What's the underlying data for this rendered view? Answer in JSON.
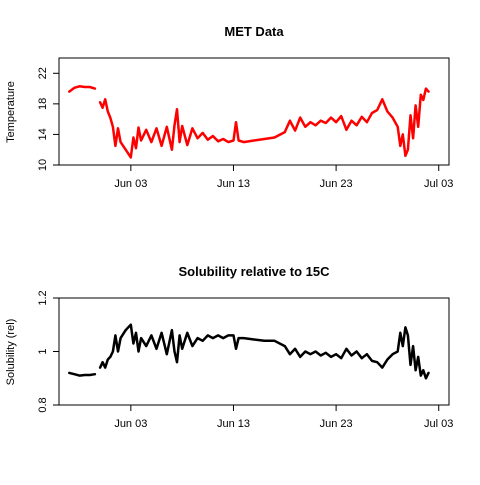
{
  "chart_data": [
    {
      "type": "line",
      "title": "MET Data",
      "xlabel": "",
      "ylabel": "Temperature",
      "ylim": [
        10,
        24
      ],
      "yticks": [
        10,
        14,
        18,
        22
      ],
      "xlim": [
        "2023-05-27",
        "2023-07-04"
      ],
      "xticks": [
        {
          "date": "2023-06-03",
          "label": "Jun 03"
        },
        {
          "date": "2023-06-13",
          "label": "Jun 13"
        },
        {
          "date": "2023-06-23",
          "label": "Jun 23"
        },
        {
          "date": "2023-07-03",
          "label": "Jul 03"
        }
      ],
      "grid": false,
      "color": "#ff0000",
      "series": [
        {
          "segments": [
            {
              "x": [
                "2023-05-28",
                "2023-05-28T12:00",
                "2023-05-29",
                "2023-05-29T12:00",
                "2023-05-30",
                "2023-05-30T12:00"
              ],
              "y": [
                19.6,
                20.1,
                20.3,
                20.2,
                20.2,
                20.0
              ]
            },
            {
              "x": [
                "2023-05-31",
                "2023-05-31T06:00",
                "2023-05-31T12:00",
                "2023-05-31T18:00",
                "2023-06-01",
                "2023-06-01T06:00",
                "2023-06-01T12:00",
                "2023-06-01T18:00",
                "2023-06-02",
                "2023-06-02T12:00",
                "2023-06-03",
                "2023-06-03T06:00",
                "2023-06-03T12:00",
                "2023-06-03T18:00",
                "2023-06-04",
                "2023-06-04T12:00",
                "2023-06-05",
                "2023-06-05T12:00",
                "2023-06-06",
                "2023-06-06T12:00",
                "2023-06-07",
                "2023-06-07T06:00",
                "2023-06-07T12:00",
                "2023-06-07T18:00",
                "2023-06-08",
                "2023-06-08T12:00",
                "2023-06-09",
                "2023-06-09T12:00",
                "2023-06-10",
                "2023-06-10T12:00",
                "2023-06-11",
                "2023-06-11T12:00",
                "2023-06-12",
                "2023-06-12T12:00",
                "2023-06-13",
                "2023-06-13T06:00",
                "2023-06-13T12:00",
                "2023-06-14",
                "2023-06-15",
                "2023-06-16",
                "2023-06-17",
                "2023-06-18",
                "2023-06-18T12:00",
                "2023-06-19",
                "2023-06-19T12:00",
                "2023-06-20",
                "2023-06-20T12:00",
                "2023-06-21",
                "2023-06-21T12:00",
                "2023-06-22",
                "2023-06-22T12:00",
                "2023-06-23",
                "2023-06-23T12:00",
                "2023-06-24",
                "2023-06-24T12:00",
                "2023-06-25",
                "2023-06-25T12:00",
                "2023-06-26",
                "2023-06-26T12:00",
                "2023-06-27",
                "2023-06-27T12:00",
                "2023-06-28",
                "2023-06-28T12:00",
                "2023-06-29",
                "2023-06-29T06:00",
                "2023-06-29T12:00",
                "2023-06-29T18:00",
                "2023-06-30",
                "2023-06-30T06:00",
                "2023-06-30T12:00",
                "2023-06-30T18:00",
                "2023-07-01",
                "2023-07-01T06:00",
                "2023-07-01T12:00",
                "2023-07-01T18:00",
                "2023-07-02"
              ],
              "y": [
                18.2,
                17.5,
                18.6,
                17.0,
                16.2,
                15.0,
                12.5,
                14.8,
                13.0,
                12.0,
                11.0,
                13.6,
                12.2,
                14.9,
                13.2,
                14.6,
                13.0,
                14.8,
                12.5,
                15.0,
                12.0,
                15.2,
                17.3,
                13.0,
                15.1,
                12.6,
                14.8,
                13.5,
                14.2,
                13.3,
                13.8,
                13.1,
                13.4,
                13.0,
                13.2,
                15.6,
                13.2,
                13.0,
                13.2,
                13.4,
                13.6,
                14.3,
                15.8,
                14.5,
                16.2,
                15.0,
                15.6,
                15.2,
                15.8,
                15.5,
                16.2,
                15.6,
                16.4,
                14.6,
                15.8,
                15.2,
                16.3,
                15.6,
                16.8,
                17.2,
                18.6,
                17.0,
                16.2,
                15.0,
                12.5,
                14.0,
                11.2,
                12.0,
                16.5,
                13.5,
                17.8,
                15.0,
                19.2,
                18.5,
                20.0,
                19.6
              ]
            }
          ]
        }
      ]
    },
    {
      "type": "line",
      "title": "Solubility relative to 15C",
      "xlabel": "",
      "ylabel": "Solubility (rel)",
      "ylim": [
        0.8,
        1.2
      ],
      "yticks": [
        0.8,
        1.0,
        1.2
      ],
      "xlim": [
        "2023-05-27",
        "2023-07-04"
      ],
      "xticks": [
        {
          "date": "2023-06-03",
          "label": "Jun 03"
        },
        {
          "date": "2023-06-13",
          "label": "Jun 13"
        },
        {
          "date": "2023-06-23",
          "label": "Jun 23"
        },
        {
          "date": "2023-07-03",
          "label": "Jul 03"
        }
      ],
      "grid": false,
      "color": "#000000",
      "series": [
        {
          "segments": [
            {
              "x": [
                "2023-05-28",
                "2023-05-28T12:00",
                "2023-05-29",
                "2023-05-29T12:00",
                "2023-05-30",
                "2023-05-30T12:00"
              ],
              "y": [
                0.92,
                0.915,
                0.91,
                0.912,
                0.912,
                0.915
              ]
            },
            {
              "x": [
                "2023-05-31",
                "2023-05-31T06:00",
                "2023-05-31T12:00",
                "2023-05-31T18:00",
                "2023-06-01",
                "2023-06-01T06:00",
                "2023-06-01T12:00",
                "2023-06-01T18:00",
                "2023-06-02",
                "2023-06-02T12:00",
                "2023-06-03",
                "2023-06-03T06:00",
                "2023-06-03T12:00",
                "2023-06-03T18:00",
                "2023-06-04",
                "2023-06-04T12:00",
                "2023-06-05",
                "2023-06-05T12:00",
                "2023-06-06",
                "2023-06-06T12:00",
                "2023-06-07",
                "2023-06-07T06:00",
                "2023-06-07T12:00",
                "2023-06-07T18:00",
                "2023-06-08",
                "2023-06-08T12:00",
                "2023-06-09",
                "2023-06-09T12:00",
                "2023-06-10",
                "2023-06-10T12:00",
                "2023-06-11",
                "2023-06-11T12:00",
                "2023-06-12",
                "2023-06-12T12:00",
                "2023-06-13",
                "2023-06-13T06:00",
                "2023-06-13T12:00",
                "2023-06-14",
                "2023-06-15",
                "2023-06-16",
                "2023-06-17",
                "2023-06-18",
                "2023-06-18T12:00",
                "2023-06-19",
                "2023-06-19T12:00",
                "2023-06-20",
                "2023-06-20T12:00",
                "2023-06-21",
                "2023-06-21T12:00",
                "2023-06-22",
                "2023-06-22T12:00",
                "2023-06-23",
                "2023-06-23T12:00",
                "2023-06-24",
                "2023-06-24T12:00",
                "2023-06-25",
                "2023-06-25T12:00",
                "2023-06-26",
                "2023-06-26T12:00",
                "2023-06-27",
                "2023-06-27T12:00",
                "2023-06-28",
                "2023-06-28T12:00",
                "2023-06-29",
                "2023-06-29T06:00",
                "2023-06-29T12:00",
                "2023-06-29T18:00",
                "2023-06-30",
                "2023-06-30T06:00",
                "2023-06-30T12:00",
                "2023-06-30T18:00",
                "2023-07-01",
                "2023-07-01T06:00",
                "2023-07-01T12:00",
                "2023-07-01T18:00",
                "2023-07-02"
              ],
              "y": [
                0.94,
                0.96,
                0.94,
                0.97,
                0.98,
                1.0,
                1.06,
                1.0,
                1.05,
                1.08,
                1.1,
                1.03,
                1.07,
                1.0,
                1.05,
                1.02,
                1.06,
                1.01,
                1.07,
                0.99,
                1.08,
                1.0,
                0.96,
                1.06,
                1.01,
                1.07,
                1.02,
                1.05,
                1.04,
                1.06,
                1.05,
                1.06,
                1.05,
                1.06,
                1.06,
                1.01,
                1.05,
                1.05,
                1.045,
                1.04,
                1.04,
                1.02,
                0.99,
                1.01,
                0.98,
                1.0,
                0.99,
                1.0,
                0.985,
                0.995,
                0.98,
                0.99,
                0.975,
                1.01,
                0.985,
                1.0,
                0.975,
                0.99,
                0.965,
                0.96,
                0.94,
                0.97,
                0.99,
                1.0,
                1.07,
                1.02,
                1.09,
                1.06,
                0.95,
                1.02,
                0.93,
                0.98,
                0.91,
                0.93,
                0.9,
                0.92
              ]
            }
          ]
        }
      ]
    }
  ]
}
